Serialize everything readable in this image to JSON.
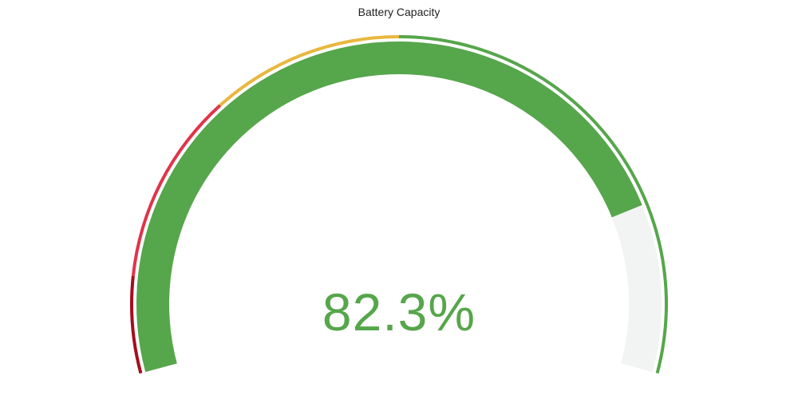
{
  "chart_data": {
    "type": "gauge",
    "title": "Battery Capacity",
    "value": 82.3,
    "value_label": "82.3%",
    "min": 0,
    "max": 100,
    "thresholds": [
      {
        "from": 0,
        "to": 10,
        "color": "#a50e1d"
      },
      {
        "from": 10,
        "to": 30,
        "color": "#e0344a"
      },
      {
        "from": 30,
        "to": 50,
        "color": "#e8b73e"
      },
      {
        "from": 50,
        "to": 100,
        "color": "#56a64b"
      }
    ],
    "value_color": "#56a64b",
    "track_color": "#f2f3f3"
  }
}
